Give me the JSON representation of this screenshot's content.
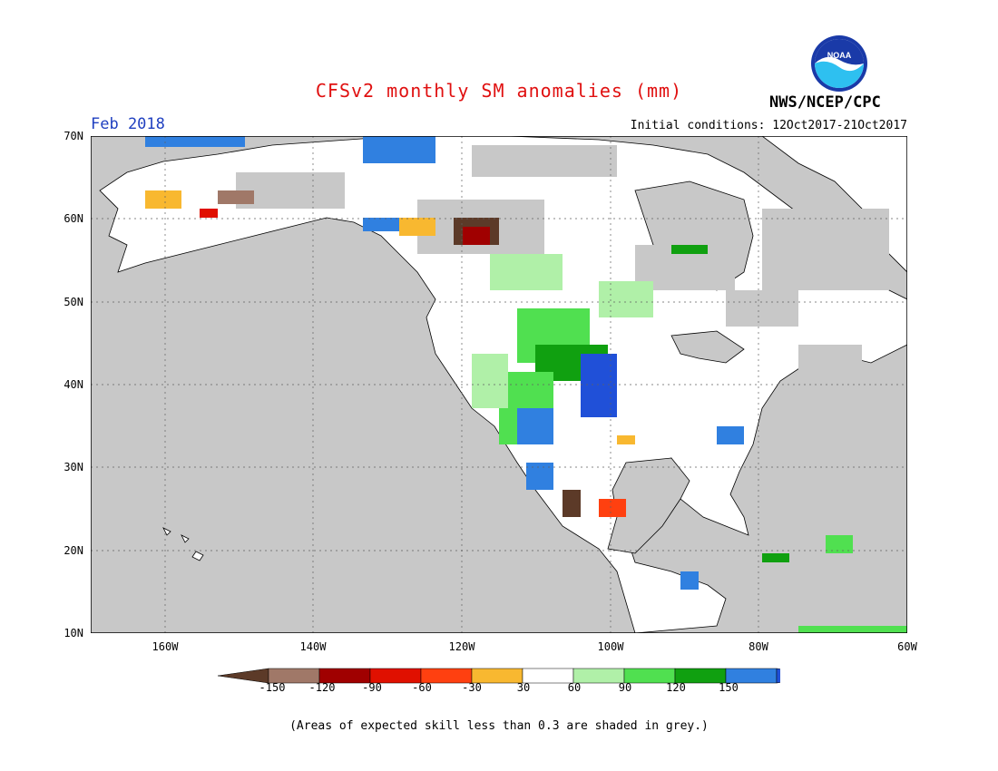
{
  "title": "CFSv2 monthly SM anomalies (mm)",
  "target_month": "Feb 2018",
  "initial_conditions": "Initial conditions: 12Oct2017-21Oct2017",
  "agency": "NWS/NCEP/CPC",
  "logo_text": "NOAA",
  "lat_labels": [
    "70N",
    "60N",
    "50N",
    "40N",
    "30N",
    "20N",
    "10N"
  ],
  "lon_labels": [
    "160W",
    "140W",
    "120W",
    "100W",
    "80W",
    "60W"
  ],
  "colorbar": {
    "labels": [
      "-150",
      "-120",
      "-90",
      "-60",
      "-30",
      "30",
      "60",
      "90",
      "120",
      "150"
    ],
    "colors": [
      "#5c3a28",
      "#a07868",
      "#a00000",
      "#e01000",
      "#ff4010",
      "#f8b830",
      "#ffffff",
      "#b0f0a8",
      "#50e050",
      "#10a010",
      "#3080e0",
      "#2050d8"
    ]
  },
  "skill_note": "(Areas of expected skill less than 0.3 are shaded in grey.)",
  "map_colors": {
    "ocean": "#c8c8c8",
    "land": "#ffffff",
    "low_skill": "#c8c8c8",
    "coast": "#000000"
  }
}
